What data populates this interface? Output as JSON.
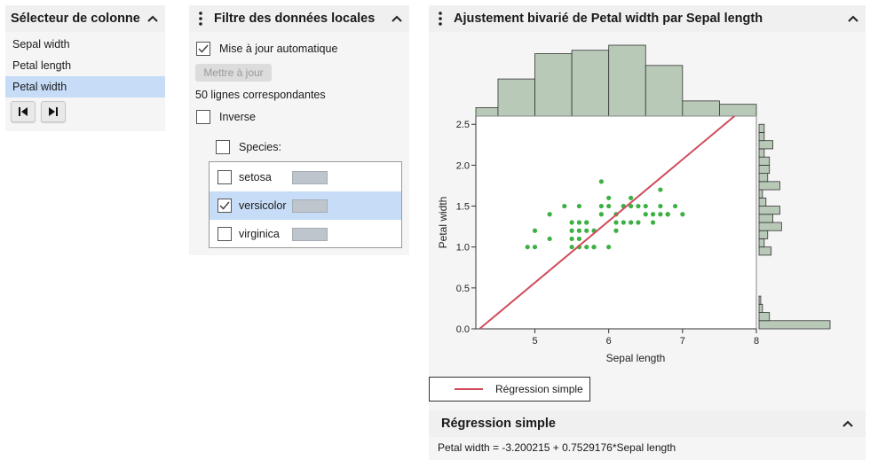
{
  "column_selector": {
    "title": "Sélecteur de colonne",
    "items": [
      {
        "label": "Sepal width",
        "selected": false
      },
      {
        "label": "Petal length",
        "selected": false
      },
      {
        "label": "Petal width",
        "selected": true
      }
    ],
    "nav": [
      "first-icon",
      "last-icon"
    ]
  },
  "local_filter": {
    "title": "Filtre des données locales",
    "auto_update": {
      "label": "Mise à jour automatique",
      "checked": true
    },
    "update_button": "Mettre à jour",
    "match_count": "50 lignes correspondantes",
    "inverse": {
      "label": "Inverse",
      "checked": false
    },
    "species": {
      "label": "Species:",
      "checked": false
    },
    "levels": [
      {
        "label": "setosa",
        "checked": false,
        "selected": false
      },
      {
        "label": "versicolor",
        "checked": true,
        "selected": true
      },
      {
        "label": "virginica",
        "checked": false,
        "selected": false
      }
    ]
  },
  "bivariate": {
    "title": "Ajustement bivarié de Petal width par Sepal length",
    "legend_label": "Régression simple",
    "regression_section": {
      "title": "Régression simple",
      "equation": "Petal width = -3.200215 + 0.7529176*Sepal length"
    }
  },
  "colors": {
    "points": "#3cb043",
    "fit_line": "#d14b5a",
    "hist_fill": "#b8c9b8",
    "hist_stroke": "#333333",
    "selection": "#c6dcf7",
    "header_bg": "#f0f0f0"
  },
  "chart_data": {
    "type": "scatter",
    "xlabel": "Sepal length",
    "ylabel": "Petal width",
    "xlim": [
      4.2,
      8.0
    ],
    "ylim": [
      0.0,
      2.6
    ],
    "xticks": [
      "5",
      "6",
      "7",
      "8"
    ],
    "yticks": [
      "0.0",
      "0.5",
      "1.0",
      "1.5",
      "2.0",
      "2.5"
    ],
    "points": [
      [
        4.9,
        1.0
      ],
      [
        5.0,
        1.0
      ],
      [
        5.2,
        1.1
      ],
      [
        5.0,
        1.2
      ],
      [
        5.2,
        1.4
      ],
      [
        5.5,
        1.0
      ],
      [
        5.6,
        1.0
      ],
      [
        5.7,
        1.0
      ],
      [
        5.8,
        1.0
      ],
      [
        6.0,
        1.0
      ],
      [
        5.5,
        1.1
      ],
      [
        5.6,
        1.1
      ],
      [
        5.7,
        1.2
      ],
      [
        5.5,
        1.2
      ],
      [
        5.6,
        1.2
      ],
      [
        5.8,
        1.2
      ],
      [
        5.5,
        1.3
      ],
      [
        5.6,
        1.3
      ],
      [
        5.7,
        1.3
      ],
      [
        6.2,
        1.3
      ],
      [
        6.3,
        1.3
      ],
      [
        6.4,
        1.3
      ],
      [
        5.9,
        1.4
      ],
      [
        6.1,
        1.4
      ],
      [
        6.6,
        1.4
      ],
      [
        6.7,
        1.4
      ],
      [
        6.8,
        1.4
      ],
      [
        7.0,
        1.4
      ],
      [
        5.4,
        1.5
      ],
      [
        5.6,
        1.5
      ],
      [
        5.9,
        1.5
      ],
      [
        6.0,
        1.5
      ],
      [
        6.2,
        1.5
      ],
      [
        6.3,
        1.5
      ],
      [
        6.5,
        1.5
      ],
      [
        6.7,
        1.5
      ],
      [
        6.9,
        1.5
      ],
      [
        6.0,
        1.6
      ],
      [
        6.3,
        1.6
      ],
      [
        6.7,
        1.7
      ],
      [
        5.9,
        1.8
      ],
      [
        5.8,
        1.0
      ],
      [
        6.1,
        1.3
      ],
      [
        6.1,
        1.2
      ],
      [
        6.4,
        1.5
      ],
      [
        6.6,
        1.3
      ],
      [
        5.7,
        1.3
      ],
      [
        6.2,
        1.5
      ],
      [
        6.8,
        1.4
      ],
      [
        6.5,
        1.4
      ]
    ],
    "fit": {
      "intercept": -3.200215,
      "slope": 0.7529176
    },
    "x_histogram": {
      "bins": [
        4.0,
        4.5,
        5.0,
        5.5,
        6.0,
        6.5,
        7.0,
        7.5,
        8.0
      ],
      "counts": [
        5,
        22,
        37,
        39,
        42,
        30,
        9,
        7
      ]
    },
    "y_histogram": {
      "bins": [
        0.0,
        0.1,
        0.2,
        0.3,
        0.4,
        0.5,
        0.6,
        0.9,
        1.0,
        1.1,
        1.2,
        1.3,
        1.4,
        1.5,
        1.6,
        1.7,
        1.8,
        1.9,
        2.0,
        2.1,
        2.2,
        2.3,
        2.4,
        2.5
      ],
      "counts": [
        41,
        6,
        2,
        1,
        0,
        0,
        0,
        7,
        3,
        5,
        13,
        8,
        12,
        4,
        2,
        12,
        5,
        6,
        6,
        3,
        8,
        3,
        3
      ]
    }
  }
}
